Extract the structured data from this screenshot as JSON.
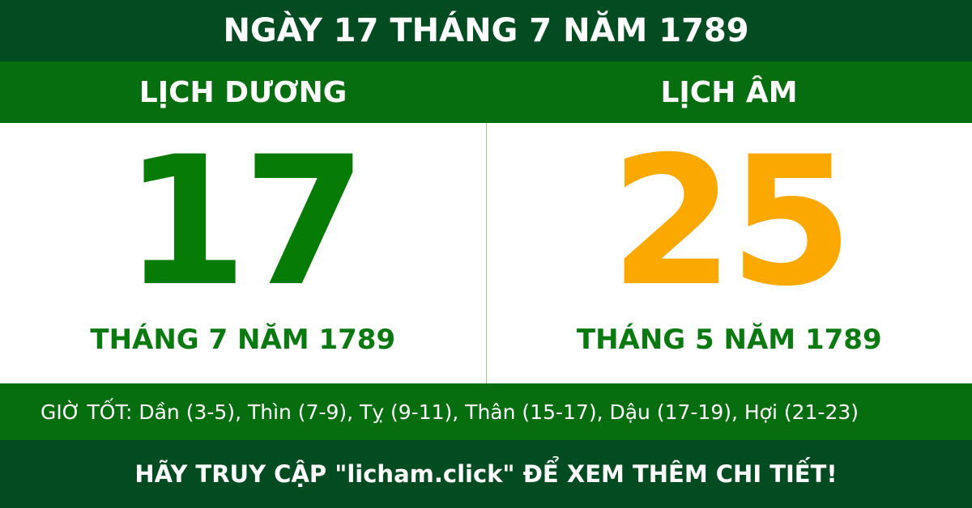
{
  "header": {
    "title": "NGÀY 17 THÁNG 7 NĂM 1789"
  },
  "solar": {
    "label": "LỊCH DƯƠNG",
    "day": "17",
    "month_year": "THÁNG 7 NĂM 1789"
  },
  "lunar": {
    "label": "LỊCH ÂM",
    "day": "25",
    "month_year": "THÁNG 5 NĂM 1789"
  },
  "good_hours": "GIỜ TỐT: Dần (3-5), Thìn (7-9), Tỵ (9-11), Thân (15-17), Dậu (17-19), Hợi (21-23)",
  "footer": {
    "text": "HÃY TRUY CẬP \"licham.click\" ĐỂ XEM THÊM CHI TIẾT!"
  }
}
